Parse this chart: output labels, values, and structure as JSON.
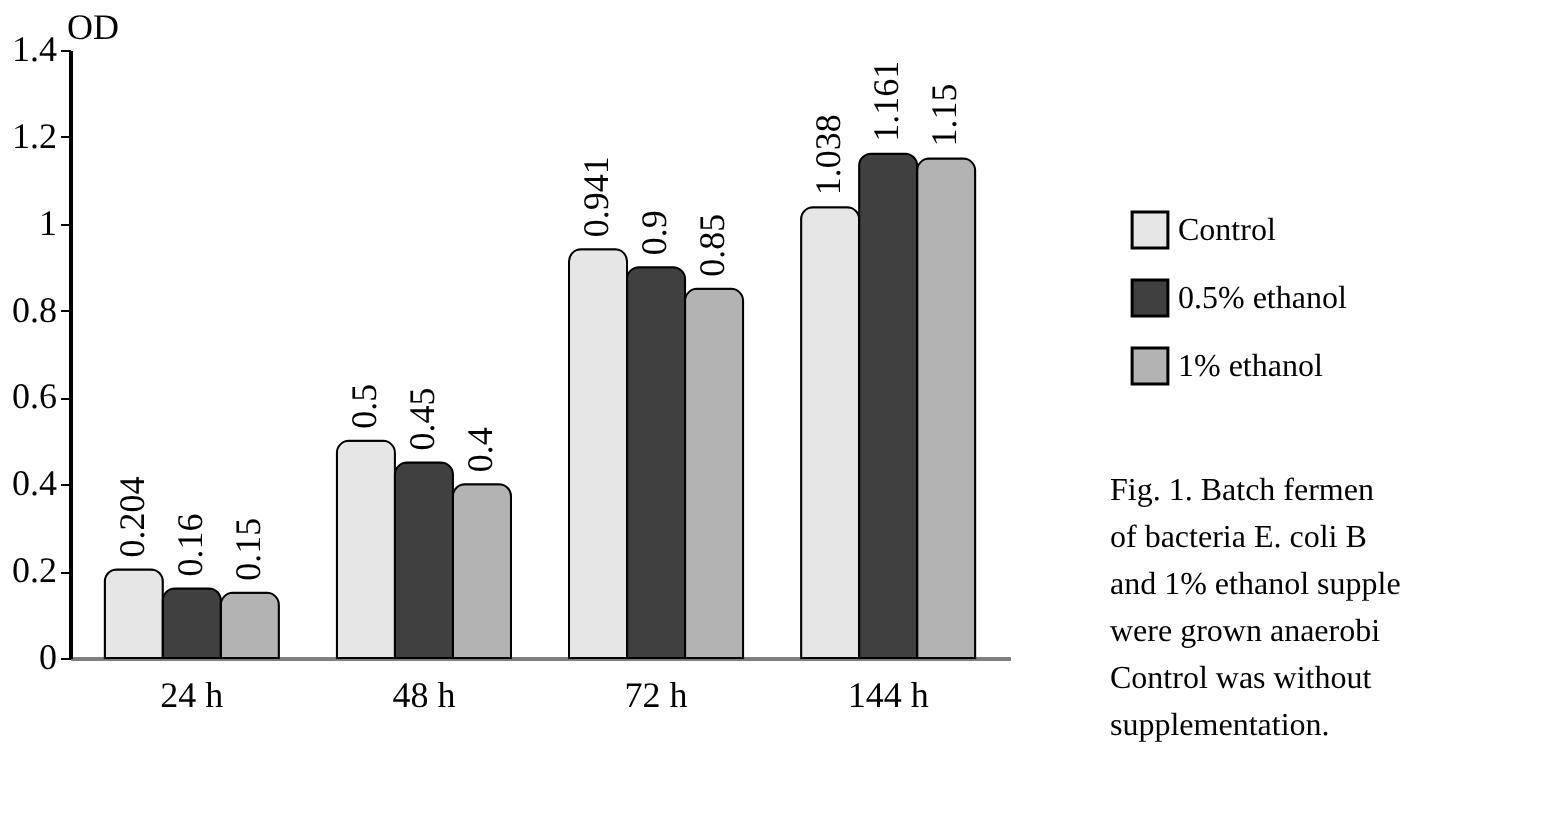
{
  "chart_data": {
    "type": "bar",
    "ylabel": "OD",
    "categories": [
      "24 h",
      "48 h",
      "72 h",
      "144 h"
    ],
    "series": [
      {
        "name": "Control",
        "color": "#e6e6e6",
        "values": [
          0.204,
          0.5,
          0.941,
          1.038
        ]
      },
      {
        "name": "0.5% ethanol",
        "color": "#404040",
        "values": [
          0.16,
          0.45,
          0.9,
          1.161
        ]
      },
      {
        "name": "1% ethanol",
        "color": "#b3b3b3",
        "values": [
          0.15,
          0.4,
          0.85,
          1.15
        ]
      }
    ],
    "ylim": [
      0,
      1.4
    ],
    "yticks": [
      0,
      0.2,
      0.4,
      0.6,
      0.8,
      1,
      1.2,
      1.4
    ],
    "grid": false,
    "legend": "right",
    "data_labels": true,
    "annotations": [
      "Fig. 1. Batch fermen",
      "of bacteria E. coli B",
      "and 1% ethanol supple",
      "were grown anaerobi",
      "Control was without",
      "supplementation."
    ]
  }
}
